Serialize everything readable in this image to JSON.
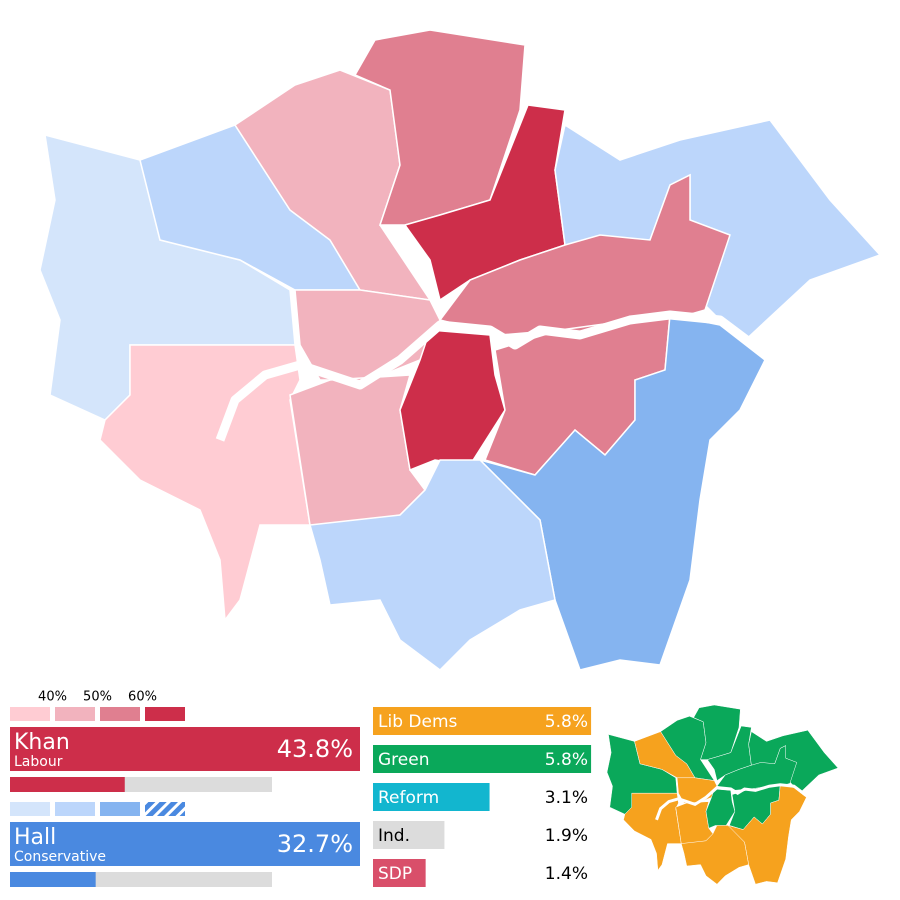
{
  "legend": {
    "ticks": [
      {
        "value": 40,
        "label": "40%"
      },
      {
        "value": 50,
        "label": "50%"
      },
      {
        "value": 60,
        "label": "60%"
      }
    ]
  },
  "candidates": [
    {
      "name": "Khan",
      "party": "Labour",
      "value": 43.8,
      "value_label": "43.8%",
      "color": "#cd2e4a"
    },
    {
      "name": "Hall",
      "party": "Conservative",
      "value": 32.7,
      "value_label": "32.7%",
      "color": "#4a89e0"
    }
  ],
  "others": [
    {
      "name": "Lib Dems",
      "value": 5.8,
      "value_label": "5.8%",
      "color": "#f6a21e"
    },
    {
      "name": "Green",
      "value": 5.8,
      "value_label": "5.8%",
      "color": "#0aa85a"
    },
    {
      "name": "Reform",
      "value": 3.1,
      "value_label": "3.1%",
      "color": "#12b6cf"
    },
    {
      "name": "Ind.",
      "value": 1.9,
      "value_label": "1.9%",
      "color": "#dcdcdc"
    },
    {
      "name": "SDP",
      "value": 1.4,
      "value_label": "1.4%",
      "color": "#d94f6a"
    }
  ]
}
